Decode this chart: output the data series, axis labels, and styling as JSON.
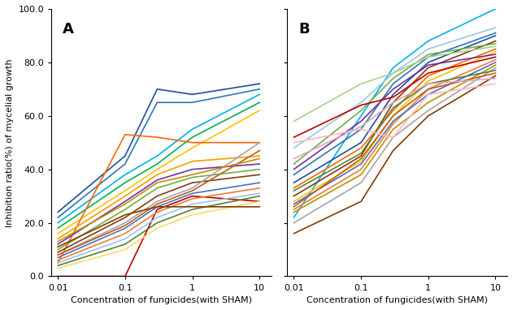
{
  "x_values": [
    0.01,
    0.1,
    0.3,
    1,
    10
  ],
  "panel_A_lines": [
    {
      "color": "#1f4e9c",
      "data": [
        24,
        45,
        70,
        68,
        72
      ]
    },
    {
      "color": "#2e75b6",
      "data": [
        22,
        42,
        65,
        65,
        70
      ]
    },
    {
      "color": "#00b0f0",
      "data": [
        20,
        38,
        45,
        55,
        68
      ]
    },
    {
      "color": "#00b050",
      "data": [
        18,
        35,
        42,
        52,
        65
      ]
    },
    {
      "color": "#ffc000",
      "data": [
        16,
        32,
        40,
        48,
        62
      ]
    },
    {
      "color": "#ff6600",
      "data": [
        5,
        53,
        52,
        50,
        50
      ]
    },
    {
      "color": "#ff9900",
      "data": [
        14,
        30,
        38,
        43,
        45
      ]
    },
    {
      "color": "#c00000",
      "data": [
        0,
        0,
        25,
        30,
        28
      ]
    },
    {
      "color": "#7030a0",
      "data": [
        12,
        28,
        36,
        40,
        42
      ]
    },
    {
      "color": "#70ad47",
      "data": [
        10,
        25,
        33,
        37,
        40
      ]
    },
    {
      "color": "#843c0c",
      "data": [
        9,
        22,
        30,
        35,
        38
      ]
    },
    {
      "color": "#a5a5a5",
      "data": [
        8,
        20,
        28,
        33,
        50
      ]
    },
    {
      "color": "#4472c4",
      "data": [
        7,
        18,
        26,
        31,
        35
      ]
    },
    {
      "color": "#ed7d31",
      "data": [
        6,
        16,
        24,
        29,
        33
      ]
    },
    {
      "color": "#9dc3e6",
      "data": [
        5,
        14,
        22,
        27,
        31
      ]
    },
    {
      "color": "#548235",
      "data": [
        4,
        12,
        20,
        25,
        30
      ]
    },
    {
      "color": "#ffd966",
      "data": [
        3,
        10,
        18,
        23,
        28
      ]
    },
    {
      "color": "#c55a11",
      "data": [
        8,
        19,
        27,
        32,
        47
      ]
    },
    {
      "color": "#833c00",
      "data": [
        11,
        23,
        26,
        26,
        26
      ]
    },
    {
      "color": "#bf8f00",
      "data": [
        13,
        27,
        35,
        38,
        44
      ]
    }
  ],
  "panel_B_lines": [
    {
      "color": "#00b0f0",
      "data": [
        22,
        60,
        78,
        88,
        100
      ]
    },
    {
      "color": "#9dc3e6",
      "data": [
        48,
        65,
        76,
        85,
        93
      ]
    },
    {
      "color": "#2e75b6",
      "data": [
        38,
        55,
        72,
        82,
        91
      ]
    },
    {
      "color": "#1f4e9c",
      "data": [
        35,
        50,
        68,
        80,
        90
      ]
    },
    {
      "color": "#843c0c",
      "data": [
        30,
        45,
        65,
        78,
        88
      ]
    },
    {
      "color": "#70ad47",
      "data": [
        42,
        62,
        74,
        83,
        87
      ]
    },
    {
      "color": "#a9d18e",
      "data": [
        58,
        72,
        76,
        82,
        86
      ]
    },
    {
      "color": "#ff6600",
      "data": [
        33,
        48,
        62,
        75,
        85
      ]
    },
    {
      "color": "#ffc000",
      "data": [
        28,
        43,
        60,
        73,
        84
      ]
    },
    {
      "color": "#7030a0",
      "data": [
        40,
        58,
        70,
        79,
        83
      ]
    },
    {
      "color": "#c00000",
      "data": [
        52,
        64,
        67,
        76,
        82
      ]
    },
    {
      "color": "#ed7d31",
      "data": [
        25,
        40,
        57,
        70,
        81
      ]
    },
    {
      "color": "#4472c4",
      "data": [
        27,
        42,
        58,
        68,
        80
      ]
    },
    {
      "color": "#bf9000",
      "data": [
        24,
        38,
        55,
        65,
        79
      ]
    },
    {
      "color": "#a5a5a5",
      "data": [
        20,
        35,
        52,
        62,
        78
      ]
    },
    {
      "color": "#548235",
      "data": [
        32,
        46,
        63,
        72,
        77
      ]
    },
    {
      "color": "#c55a11",
      "data": [
        26,
        44,
        60,
        70,
        76
      ]
    },
    {
      "color": "#833c00",
      "data": [
        16,
        28,
        47,
        60,
        75
      ]
    },
    {
      "color": "#d9a6c0",
      "data": [
        44,
        56,
        65,
        72,
        74
      ]
    },
    {
      "color": "#ffb6c1",
      "data": [
        50,
        55,
        52,
        68,
        72
      ]
    }
  ],
  "xlim": [
    0.008,
    15
  ],
  "ylim": [
    0,
    100
  ],
  "yticks": [
    0,
    20,
    40,
    60,
    80,
    100
  ],
  "ytick_labels": [
    "0.0",
    "20.0",
    "40.0",
    "60.0",
    "80.0",
    "100.0"
  ],
  "xticks": [
    0.01,
    0.1,
    1,
    10
  ],
  "xtick_labels": [
    "0.01",
    "0.1",
    "1",
    "10"
  ],
  "xlabel": "Concentration of fungicides(with SHAM)",
  "ylabel": "Inhibition ratio(%) of mycelial growth",
  "label_A": "A",
  "label_B": "B",
  "linewidth": 1.2
}
